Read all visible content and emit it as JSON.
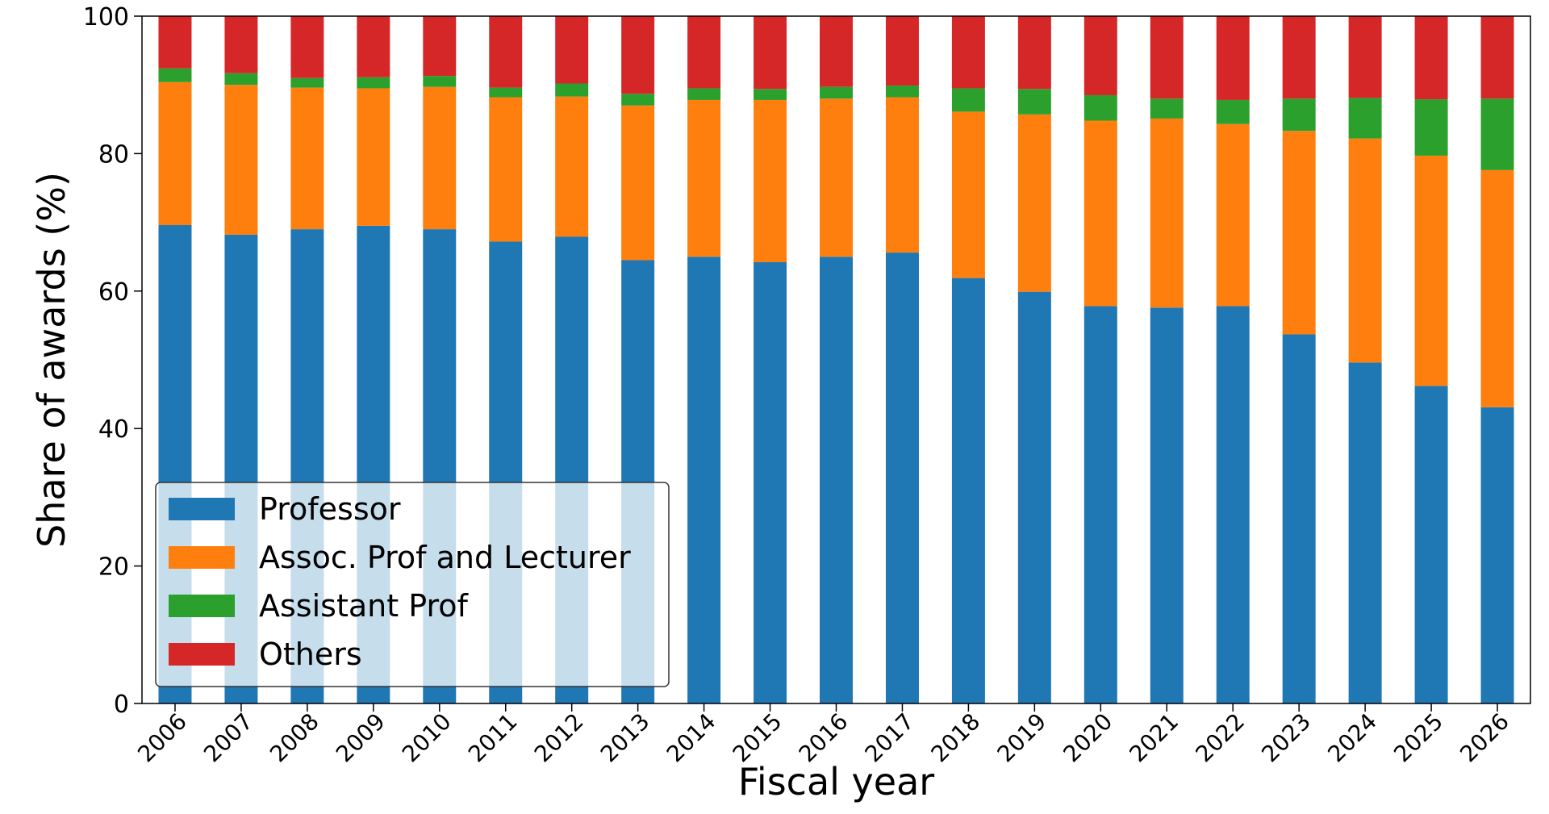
{
  "chart_data": {
    "type": "bar",
    "stacked": true,
    "title": "",
    "xlabel": "Fiscal year",
    "ylabel": "Share of awards (%)",
    "ylim": [
      0,
      100
    ],
    "yticks": [
      "0",
      "20",
      "40",
      "60",
      "80",
      "100"
    ],
    "grid": false,
    "legend_position": "lower-left",
    "categories": [
      "2006",
      "2007",
      "2008",
      "2009",
      "2010",
      "2011",
      "2012",
      "2013",
      "2014",
      "2015",
      "2016",
      "2017",
      "2018",
      "2019",
      "2020",
      "2021",
      "2022",
      "2023",
      "2024",
      "2025",
      "2026"
    ],
    "series": [
      {
        "name": "Professor",
        "color": "#1f77b4",
        "values": [
          69.6,
          68.2,
          69.0,
          69.5,
          69.0,
          67.2,
          67.9,
          64.5,
          65.0,
          64.2,
          65.0,
          65.6,
          61.9,
          59.9,
          57.8,
          57.6,
          57.8,
          53.7,
          49.6,
          46.2,
          43.1
        ]
      },
      {
        "name": "Assoc. Prof and Lecturer",
        "color": "#ff7f0e",
        "values": [
          20.8,
          21.8,
          20.6,
          20.0,
          20.7,
          21.0,
          20.4,
          22.5,
          22.8,
          23.6,
          23.0,
          22.6,
          24.2,
          25.8,
          27.0,
          27.5,
          26.5,
          29.6,
          32.6,
          33.5,
          34.5
        ]
      },
      {
        "name": "Assistant Prof",
        "color": "#2ca02c",
        "values": [
          2.0,
          1.7,
          1.4,
          1.6,
          1.6,
          1.4,
          1.9,
          1.7,
          1.7,
          1.6,
          1.7,
          1.7,
          3.4,
          3.7,
          3.7,
          2.9,
          3.5,
          4.7,
          5.9,
          8.2,
          10.4
        ]
      },
      {
        "name": "Others",
        "color": "#d62728",
        "values": [
          7.6,
          8.3,
          9.0,
          8.9,
          8.7,
          10.4,
          9.8,
          11.3,
          10.5,
          10.6,
          10.3,
          10.1,
          10.5,
          10.6,
          11.5,
          12.0,
          12.2,
          12.0,
          11.9,
          12.1,
          12.0
        ]
      }
    ]
  }
}
